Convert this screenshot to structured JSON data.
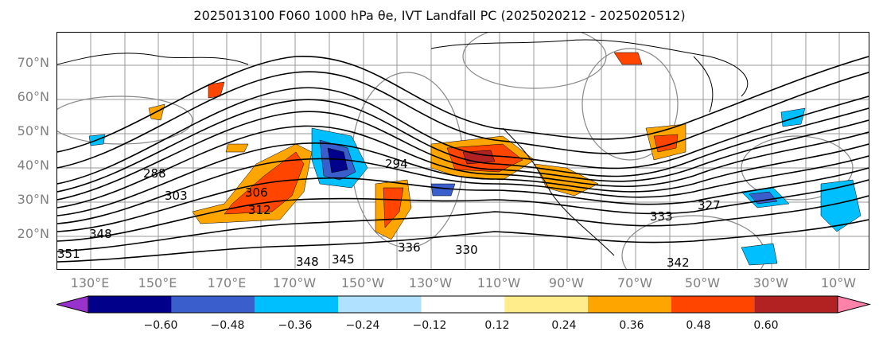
{
  "title": "2025013100 F060 1000 hPa θe, IVT Landfall PC (2025020212 - 2025020512)",
  "lat_labels": [
    "70°N",
    "60°N",
    "50°N",
    "40°N",
    "30°N",
    "20°N"
  ],
  "lon_labels": [
    "130°E",
    "150°E",
    "170°E",
    "170°W",
    "150°W",
    "130°W",
    "110°W",
    "90°W",
    "70°W",
    "50°W",
    "30°W",
    "10°W"
  ],
  "contour_labels": [
    "288",
    "303",
    "306",
    "294",
    "312",
    "348",
    "345",
    "336",
    "330",
    "333",
    "342",
    "327",
    "348",
    "351"
  ],
  "colorbar": {
    "tick_labels": [
      "−0.60",
      "−0.48",
      "−0.36",
      "−0.24",
      "−0.12",
      "0.12",
      "0.24",
      "0.36",
      "0.48",
      "0.60"
    ],
    "colors": [
      "#9932cc",
      "#00008b",
      "#3a5fcd",
      "#00bfff",
      "#b0e2ff",
      "#ffffff",
      "#ffec8b",
      "#ffa500",
      "#ff4500",
      "#b22222",
      "#ff82ab"
    ],
    "extend": "both"
  },
  "map": {
    "fill_positive": [
      "#ffa500",
      "#ff4500",
      "#b22222"
    ],
    "fill_negative": [
      "#00bfff",
      "#3a5fcd",
      "#00008b"
    ],
    "contour_color": "#000000",
    "gridline_color": "#999999",
    "pressure_contour_color": "#888888"
  }
}
